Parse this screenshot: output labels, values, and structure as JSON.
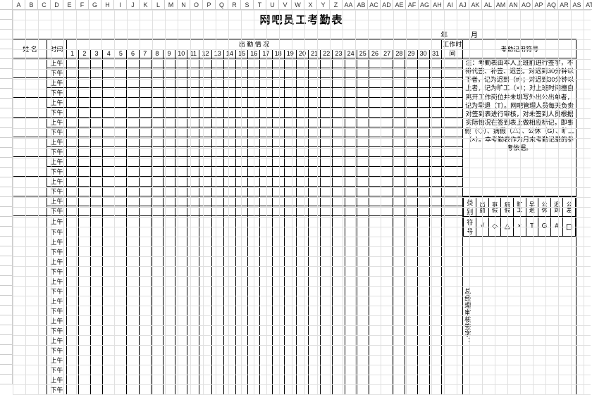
{
  "spreadsheet": {
    "columns": [
      "A",
      "B",
      "C",
      "D",
      "E",
      "F",
      "G",
      "H",
      "I",
      "J",
      "K",
      "L",
      "M",
      "N",
      "O",
      "P",
      "Q",
      "R",
      "S",
      "T",
      "U",
      "V",
      "W",
      "X",
      "Y",
      "Z",
      "AA",
      "AB",
      "AC",
      "AD",
      "AE",
      "AF",
      "AG",
      "AH",
      "AI",
      "AJ",
      "AK",
      "AL",
      "AM",
      "AN",
      "AO",
      "AP",
      "AQ",
      "AR",
      "AS",
      "AT"
    ],
    "row_start": 1,
    "row_count": 38,
    "gridline_color": "#e0e0e0",
    "header_border": "#cccccc"
  },
  "title": "网吧员工考勤表",
  "dateline": {
    "year_label": "年",
    "month_label": "月"
  },
  "headers": {
    "name": "姓 名",
    "time": "时间",
    "attendance_group": "出  勤  情  况",
    "work_hours": "工作时间",
    "legend_title": "考勤记用符号"
  },
  "days": [
    "1",
    "2",
    "3",
    "4",
    "5",
    "6",
    "7",
    "8",
    "9",
    "10",
    "11",
    "12",
    "13",
    "14",
    "15",
    "16",
    "17",
    "18",
    "19",
    "20",
    "21",
    "22",
    "23",
    "24",
    "25",
    "26",
    "27",
    "28",
    "29",
    "30",
    "31"
  ],
  "shift": {
    "am": "上午",
    "pm": "下午"
  },
  "employee_rows": 17,
  "note": "注：考勤表由本人上班前进行签字，不得代签、补签、迟签。对迟到30分钟以下者，记为迟到（#）；对迟到30分钟以上者，记为旷工（×）；对上班时间擅自离开工作岗位并未填写外出公出单者，记为早退（T）。网吧管理人员每天负责对签到表进行审核，对未签到人员根据实际情况在签到表上做相应标记，即事假（◇）、病假（△）、公休（G）、旷工（×）。本考勤表作为月末考勤记录的参考依据。",
  "legend": {
    "row1_label": "类别",
    "row2_label": "符号",
    "categories": [
      "出勤",
      "事假",
      "病假",
      "旷工",
      "早退",
      "公休",
      "迟到",
      "公差"
    ],
    "symbols": [
      "√",
      "◇",
      "△",
      "×",
      "T",
      "G",
      "#",
      "口"
    ]
  },
  "manager": "总经理审核签字：",
  "style": {
    "title_fontsize": 15,
    "cell_fontsize": 9,
    "border_color": "#000000",
    "background": "#ffffff"
  }
}
